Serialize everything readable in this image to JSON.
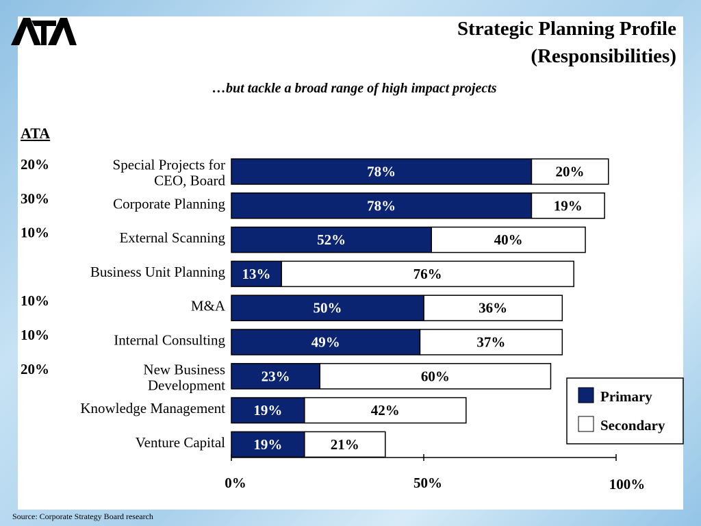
{
  "header": {
    "logo_text": "ATA",
    "title_line1": "Strategic Planning Profile",
    "title_line2": "(Responsibilities)",
    "subtitle": "…but tackle a broad range of high impact projects"
  },
  "left_column": {
    "heading": "ATA"
  },
  "source": "Source:  Corporate Strategy Board research",
  "colors": {
    "primary": "#0b2471",
    "secondary": "#ffffff",
    "border": "#000000"
  },
  "chart_data": {
    "type": "bar",
    "orientation": "horizontal",
    "stacked": true,
    "categories": [
      [
        "Special Projects for",
        "CEO, Board"
      ],
      [
        "Corporate Planning"
      ],
      [
        "External Scanning"
      ],
      [
        "Business Unit Planning"
      ],
      [
        "M&A"
      ],
      [
        "Internal Consulting"
      ],
      [
        "New Business",
        "Development"
      ],
      [
        "Knowledge Management"
      ],
      [
        "Venture Capital"
      ]
    ],
    "ata_values": [
      "20%",
      "30%",
      "10%",
      "",
      "10%",
      "10%",
      "20%",
      "",
      ""
    ],
    "series": [
      {
        "name": "Primary",
        "values": [
          78,
          78,
          52,
          13,
          50,
          49,
          23,
          19,
          19
        ],
        "labels": [
          "78%",
          "78%",
          "52%",
          "13%",
          "50%",
          "49%",
          "23%",
          "19%",
          "19%"
        ]
      },
      {
        "name": "Secondary",
        "values": [
          20,
          19,
          40,
          76,
          36,
          37,
          60,
          42,
          21
        ],
        "labels": [
          "20%",
          "19%",
          "40%",
          "76%",
          "36%",
          "37%",
          "60%",
          "42%",
          "21%"
        ]
      }
    ],
    "xlim": [
      0,
      100
    ],
    "x_ticks": [
      0,
      50,
      100
    ],
    "x_tick_labels": [
      "0%",
      "50%",
      "100%"
    ],
    "legend_position": "bottom-right",
    "grid": false
  }
}
